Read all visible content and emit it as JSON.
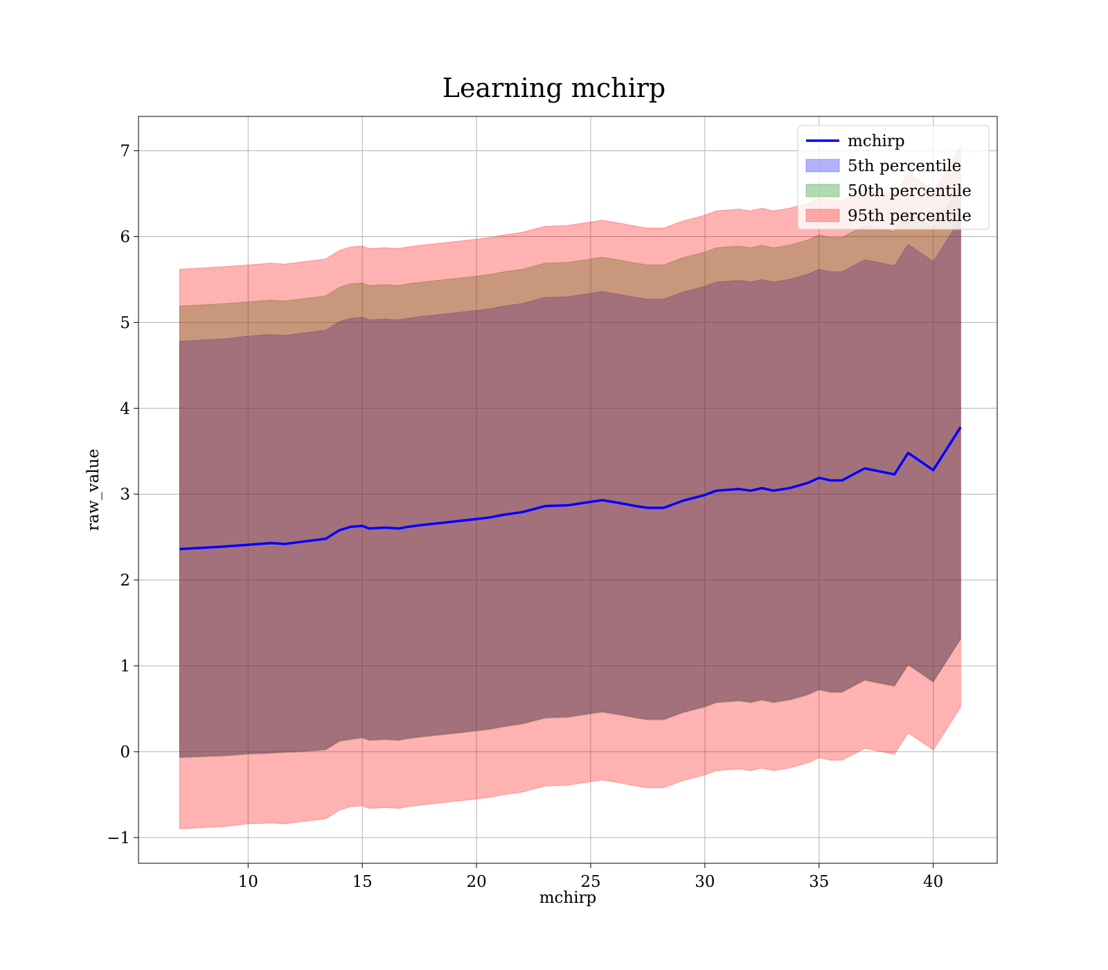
{
  "chart_data": {
    "type": "area",
    "title": "Learning mchirp",
    "xlabel": "mchirp",
    "ylabel": "raw_value",
    "xlim": [
      5.2,
      42.8
    ],
    "ylim": [
      -1.3,
      7.4
    ],
    "xticks": [
      10,
      15,
      20,
      25,
      30,
      35,
      40
    ],
    "yticks": [
      -1,
      0,
      1,
      2,
      3,
      4,
      5,
      6,
      7
    ],
    "xtick_labels": [
      "10",
      "15",
      "20",
      "25",
      "30",
      "35",
      "40"
    ],
    "ytick_labels": [
      "−1",
      "0",
      "1",
      "2",
      "3",
      "4",
      "5",
      "6",
      "7"
    ],
    "grid": true,
    "legend_position": "top-right",
    "x": [
      7.0,
      9.0,
      10.0,
      11.0,
      11.6,
      12.5,
      13.4,
      14.0,
      14.5,
      15.0,
      15.3,
      16.0,
      16.6,
      17.0,
      17.6,
      18.3,
      19.0,
      20.0,
      20.6,
      21.2,
      22.0,
      23.0,
      24.0,
      25.0,
      25.5,
      26.2,
      27.0,
      27.5,
      28.2,
      29.0,
      30.0,
      30.5,
      31.5,
      32.0,
      32.5,
      33.0,
      33.7,
      34.5,
      35.0,
      35.5,
      36.0,
      37.0,
      38.3,
      38.9,
      40.0,
      41.2
    ],
    "series": [
      {
        "name": "mchirp",
        "color": "#0000ff",
        "values": [
          2.36,
          2.39,
          2.41,
          2.43,
          2.42,
          2.45,
          2.48,
          2.58,
          2.62,
          2.63,
          2.6,
          2.61,
          2.6,
          2.62,
          2.64,
          2.66,
          2.68,
          2.71,
          2.73,
          2.76,
          2.79,
          2.86,
          2.87,
          2.91,
          2.93,
          2.9,
          2.86,
          2.84,
          2.84,
          2.92,
          2.99,
          3.04,
          3.06,
          3.04,
          3.07,
          3.04,
          3.07,
          3.13,
          3.19,
          3.16,
          3.16,
          3.3,
          3.23,
          3.48,
          3.28,
          3.78
        ]
      }
    ],
    "bands": [
      {
        "name": "5th percentile",
        "color": "#0000ff",
        "lower": [
          -0.06,
          -0.04,
          -0.02,
          -0.01,
          0.0,
          0.01,
          0.03,
          0.13,
          0.15,
          0.17,
          0.14,
          0.15,
          0.14,
          0.16,
          0.18,
          0.2,
          0.22,
          0.25,
          0.27,
          0.3,
          0.33,
          0.4,
          0.41,
          0.45,
          0.47,
          0.44,
          0.4,
          0.38,
          0.38,
          0.46,
          0.53,
          0.58,
          0.6,
          0.58,
          0.61,
          0.58,
          0.61,
          0.67,
          0.73,
          0.7,
          0.7,
          0.84,
          0.77,
          1.02,
          0.82,
          1.32
        ],
        "upper": [
          4.78,
          4.81,
          4.84,
          4.86,
          4.85,
          4.88,
          4.91,
          5.01,
          5.05,
          5.06,
          5.03,
          5.04,
          5.03,
          5.05,
          5.07,
          5.09,
          5.11,
          5.14,
          5.16,
          5.19,
          5.22,
          5.29,
          5.3,
          5.34,
          5.36,
          5.33,
          5.29,
          5.27,
          5.27,
          5.35,
          5.42,
          5.47,
          5.49,
          5.47,
          5.5,
          5.47,
          5.5,
          5.56,
          5.62,
          5.59,
          5.59,
          5.73,
          5.66,
          5.91,
          5.71,
          6.21
        ]
      },
      {
        "name": "50th percentile",
        "color": "#008000",
        "lower": [
          -0.07,
          -0.05,
          -0.03,
          -0.02,
          -0.01,
          0.0,
          0.02,
          0.12,
          0.14,
          0.16,
          0.13,
          0.14,
          0.13,
          0.15,
          0.17,
          0.19,
          0.21,
          0.24,
          0.26,
          0.29,
          0.32,
          0.39,
          0.4,
          0.44,
          0.46,
          0.43,
          0.39,
          0.37,
          0.37,
          0.45,
          0.52,
          0.57,
          0.59,
          0.57,
          0.6,
          0.57,
          0.6,
          0.66,
          0.72,
          0.69,
          0.69,
          0.83,
          0.76,
          1.01,
          0.81,
          1.31
        ],
        "upper": [
          5.19,
          5.22,
          5.24,
          5.26,
          5.25,
          5.28,
          5.31,
          5.41,
          5.45,
          5.46,
          5.43,
          5.44,
          5.43,
          5.45,
          5.47,
          5.49,
          5.51,
          5.54,
          5.56,
          5.59,
          5.62,
          5.69,
          5.7,
          5.74,
          5.76,
          5.73,
          5.69,
          5.67,
          5.67,
          5.75,
          5.82,
          5.87,
          5.89,
          5.87,
          5.9,
          5.87,
          5.9,
          5.96,
          6.02,
          5.99,
          5.99,
          6.13,
          6.06,
          6.31,
          6.11,
          6.61
        ]
      },
      {
        "name": "95th percentile",
        "color": "#ff0000",
        "lower": [
          -0.9,
          -0.87,
          -0.84,
          -0.83,
          -0.84,
          -0.81,
          -0.78,
          -0.68,
          -0.64,
          -0.63,
          -0.66,
          -0.65,
          -0.66,
          -0.64,
          -0.62,
          -0.6,
          -0.58,
          -0.55,
          -0.53,
          -0.5,
          -0.47,
          -0.4,
          -0.39,
          -0.35,
          -0.33,
          -0.36,
          -0.4,
          -0.42,
          -0.42,
          -0.34,
          -0.27,
          -0.22,
          -0.2,
          -0.22,
          -0.19,
          -0.22,
          -0.19,
          -0.13,
          -0.07,
          -0.1,
          -0.1,
          0.04,
          -0.03,
          0.22,
          0.02,
          0.52
        ],
        "upper": [
          5.62,
          5.65,
          5.67,
          5.69,
          5.68,
          5.71,
          5.74,
          5.84,
          5.88,
          5.89,
          5.86,
          5.87,
          5.86,
          5.88,
          5.9,
          5.92,
          5.94,
          5.97,
          5.99,
          6.02,
          6.05,
          6.12,
          6.13,
          6.17,
          6.19,
          6.16,
          6.12,
          6.1,
          6.1,
          6.18,
          6.25,
          6.3,
          6.32,
          6.3,
          6.33,
          6.3,
          6.33,
          6.39,
          6.45,
          6.42,
          6.42,
          6.56,
          6.49,
          6.74,
          6.54,
          7.04
        ]
      }
    ]
  }
}
